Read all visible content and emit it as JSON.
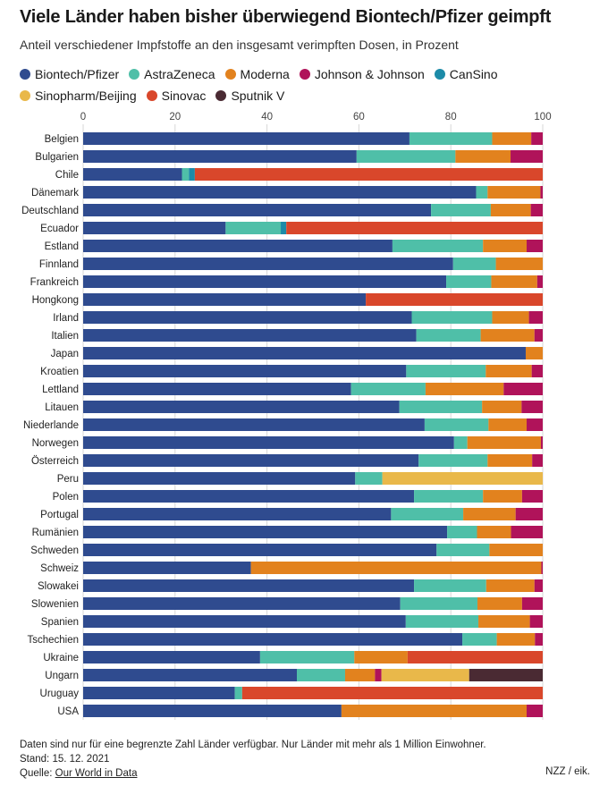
{
  "chart_data": {
    "type": "bar",
    "orientation": "horizontal",
    "stacked": true,
    "title": "Viele Länder haben bisher überwiegend Biontech/Pfizer geimpft",
    "subtitle": "Anteil verschiedener Impfstoffe an den insgesamt verimpften Dosen, in Prozent",
    "xlim": [
      0,
      100
    ],
    "xticks": [
      "0",
      "20",
      "40",
      "60",
      "80",
      "100"
    ],
    "grid": true,
    "legend_position": "top",
    "series": [
      {
        "name": "Biontech/Pfizer",
        "color": "#2f4b8f"
      },
      {
        "name": "AstraZeneca",
        "color": "#4fbfa8"
      },
      {
        "name": "Moderna",
        "color": "#e2821e"
      },
      {
        "name": "Johnson & Johnson",
        "color": "#b0135a"
      },
      {
        "name": "CanSino",
        "color": "#1c8ba8"
      },
      {
        "name": "Sinopharm/Beijing",
        "color": "#e9b84a"
      },
      {
        "name": "Sinovac",
        "color": "#d9472b"
      },
      {
        "name": "Sputnik V",
        "color": "#4a2a33"
      }
    ],
    "categories": [
      "Belgien",
      "Bulgarien",
      "Chile",
      "Dänemark",
      "Deutschland",
      "Ecuador",
      "Estland",
      "Finnland",
      "Frankreich",
      "Hongkong",
      "Irland",
      "Italien",
      "Japan",
      "Kroatien",
      "Lettland",
      "Litauen",
      "Niederlande",
      "Norwegen",
      "Österreich",
      "Peru",
      "Polen",
      "Portugal",
      "Rumänien",
      "Schweden",
      "Schweiz",
      "Slowakei",
      "Slowenien",
      "Spanien",
      "Tschechien",
      "Ukraine",
      "Ungarn",
      "Uruguay",
      "USA"
    ],
    "values": [
      [
        71,
        18,
        8.5,
        2.5,
        0,
        0,
        0,
        0
      ],
      [
        59.5,
        21.5,
        12,
        7,
        0,
        0,
        0,
        0
      ],
      [
        21.5,
        1.5,
        0,
        0,
        1.3,
        0,
        75.7,
        0
      ],
      [
        85.5,
        2.5,
        11.5,
        0.5,
        0,
        0,
        0,
        0
      ],
      [
        75.7,
        13,
        8.7,
        2.6,
        0,
        0,
        0,
        0
      ],
      [
        31,
        12,
        0,
        0,
        1.2,
        0,
        55.8,
        0
      ],
      [
        67.3,
        19.7,
        9.5,
        3.5,
        0,
        0,
        0,
        0
      ],
      [
        80.5,
        9.3,
        10.2,
        0,
        0,
        0,
        0,
        0
      ],
      [
        79,
        9.8,
        10,
        1.2,
        0,
        0,
        0,
        0
      ],
      [
        61.5,
        0,
        0,
        0,
        0,
        0,
        38.5,
        0
      ],
      [
        71.5,
        17.5,
        8,
        3,
        0,
        0,
        0,
        0
      ],
      [
        72.5,
        14,
        11.7,
        1.8,
        0,
        0,
        0,
        0
      ],
      [
        96.3,
        0,
        3.7,
        0,
        0,
        0,
        0,
        0
      ],
      [
        70.3,
        17.3,
        10,
        2.4,
        0,
        0,
        0,
        0
      ],
      [
        58.3,
        16.2,
        17,
        8.5,
        0,
        0,
        0,
        0
      ],
      [
        68.8,
        18,
        8.6,
        4.6,
        0,
        0,
        0,
        0
      ],
      [
        74.3,
        13.9,
        8.3,
        3.5,
        0,
        0,
        0,
        0
      ],
      [
        80.7,
        2.9,
        16,
        0.4,
        0,
        0,
        0,
        0
      ],
      [
        73,
        15,
        9.7,
        2.3,
        0,
        0,
        0,
        0
      ],
      [
        59.2,
        5.9,
        0,
        0,
        0,
        34.9,
        0,
        0
      ],
      [
        72,
        15,
        8.5,
        4.5,
        0,
        0,
        0,
        0
      ],
      [
        67,
        15.7,
        11.4,
        5.9,
        0,
        0,
        0,
        0
      ],
      [
        79.2,
        6.5,
        7.4,
        6.9,
        0,
        0,
        0,
        0
      ],
      [
        76.9,
        11.5,
        11.6,
        0,
        0,
        0,
        0,
        0
      ],
      [
        36.5,
        0,
        63.2,
        0.3,
        0,
        0,
        0,
        0
      ],
      [
        72,
        15.7,
        10.5,
        1.8,
        0,
        0,
        0,
        0
      ],
      [
        69,
        16.8,
        9.7,
        4.5,
        0,
        0,
        0,
        0
      ],
      [
        70.2,
        15.8,
        11.2,
        2.8,
        0,
        0,
        0,
        0
      ],
      [
        82.5,
        7.5,
        8.3,
        1.7,
        0,
        0,
        0,
        0
      ],
      [
        38.5,
        20.5,
        11.6,
        0,
        0,
        0,
        29.4,
        0
      ],
      [
        46.5,
        10.5,
        6.5,
        1.4,
        0,
        19.1,
        0,
        16
      ],
      [
        33,
        1.6,
        0,
        0,
        0,
        0,
        65.4,
        0
      ],
      [
        56.2,
        0,
        40.3,
        3.5,
        0,
        0,
        0,
        0
      ]
    ]
  },
  "footer": {
    "note": "Daten sind nur für eine begrenzte Zahl Länder verfügbar. Nur Länder mit mehr als 1 Million Einwohner.",
    "date": "Stand: 15. 12. 2021",
    "source_label": "Quelle:",
    "source_link": "Our World in Data",
    "brand": "NZZ / eik."
  }
}
